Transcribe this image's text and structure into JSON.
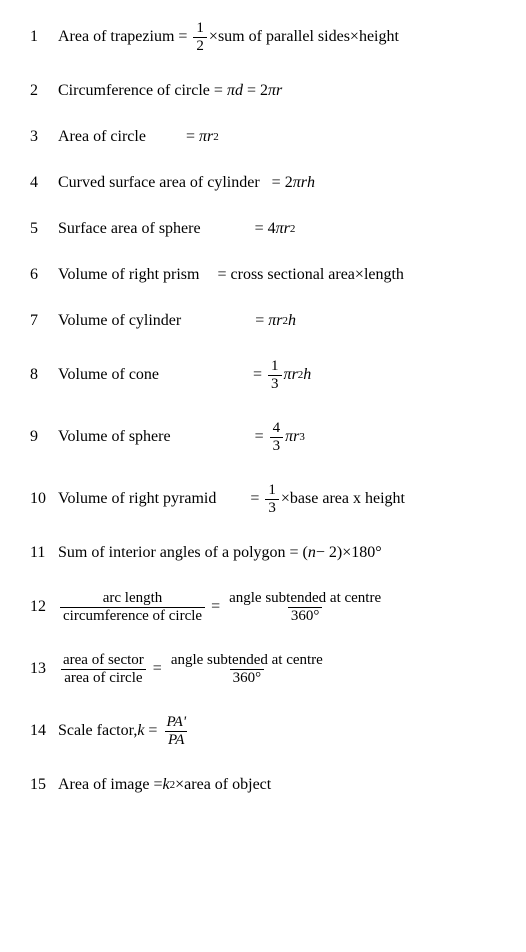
{
  "rows": [
    {
      "n": "1",
      "label": "Area of trapezium",
      "labelPad": 0,
      "rhs_type": "trapezium"
    },
    {
      "n": "2",
      "label": "Circumference of circle",
      "labelPad": 0,
      "rhs_type": "circum"
    },
    {
      "n": "3",
      "label": "Area of circle",
      "labelPad": 36,
      "rhs_type": "area_circle"
    },
    {
      "n": "4",
      "label": "Curved surface area of cylinder",
      "labelPad": 8,
      "rhs_type": "csa_cyl"
    },
    {
      "n": "5",
      "label": "Surface area of sphere",
      "labelPad": 50,
      "rhs_type": "sa_sphere"
    },
    {
      "n": "6",
      "label": "Volume of right prism",
      "labelPad": 14,
      "rhs_type": "prism"
    },
    {
      "n": "7",
      "label": "Volume of cylinder",
      "labelPad": 70,
      "rhs_type": "vol_cyl"
    },
    {
      "n": "8",
      "label": "Volume of cone",
      "labelPad": 90,
      "rhs_type": "vol_cone"
    },
    {
      "n": "9",
      "label": "Volume of sphere",
      "labelPad": 80,
      "rhs_type": "vol_sphere"
    },
    {
      "n": "10",
      "label": "Volume of right pyramid",
      "labelPad": 30,
      "rhs_type": "pyramid"
    },
    {
      "n": "11",
      "label": "Sum of interior angles of a polygon",
      "labelPad": 0,
      "rhs_type": "polygon"
    },
    {
      "n": "12",
      "rhs_type": "arc"
    },
    {
      "n": "13",
      "rhs_type": "sector"
    },
    {
      "n": "14",
      "label": "Scale factor, ",
      "rhs_type": "scale"
    },
    {
      "n": "15",
      "label": "Area of image = ",
      "rhs_type": "image"
    }
  ],
  "text": {
    "sum_parallel": "sum of parallel sides",
    "height": "height",
    "cross": "cross sectional area",
    "length": "length",
    "base": "base area x height",
    "arc_n": "arc length",
    "arc_d": "circumference of circle",
    "angle_n": "angle subtended at centre",
    "deg": "360°",
    "sector_n": "area of sector",
    "sector_d": "area of circle",
    "area_obj": "area of object",
    "eq_d": " d ",
    "eq_2r": "2",
    "two": "2",
    "four": "4",
    "onethird_n": "1",
    "onethird_d": "3",
    "half_n": "1",
    "half_d": "2",
    "fourthird_n": "4",
    "fourthird_d": "3",
    "pi": "π",
    "r": "r",
    "h": "h",
    "k": "k",
    "n": "n",
    "minus2": " − 2)",
    "times180": "×180°",
    "lp": "(",
    "pa_n": "PA'",
    "pa_d": "PA",
    "sq": "2",
    "cube": "3"
  }
}
